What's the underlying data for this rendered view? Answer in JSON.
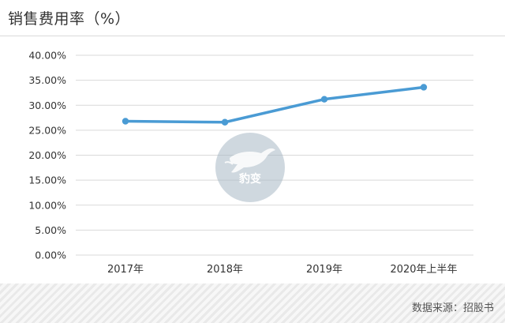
{
  "header": {
    "title": "销售费用率（%）"
  },
  "footer": {
    "source": "数据来源：招股书"
  },
  "watermark": {
    "text": "豹变",
    "icon": "leopard-icon"
  },
  "colors": {
    "line": "#4a9bd4",
    "grid": "#d9d9d9",
    "axis_text": "#333333"
  },
  "chart_data": {
    "type": "line",
    "title": "销售费用率（%）",
    "categories": [
      "2017年",
      "2018年",
      "2019年",
      "2020年上半年"
    ],
    "values": [
      26.8,
      26.6,
      31.2,
      33.6
    ],
    "y_ticks": [
      "0.00%",
      "5.00%",
      "10.00%",
      "15.00%",
      "20.00%",
      "25.00%",
      "30.00%",
      "35.00%",
      "40.00%"
    ],
    "ylim": [
      0,
      40
    ],
    "y_step": 5,
    "grid": true,
    "legend": "none"
  }
}
